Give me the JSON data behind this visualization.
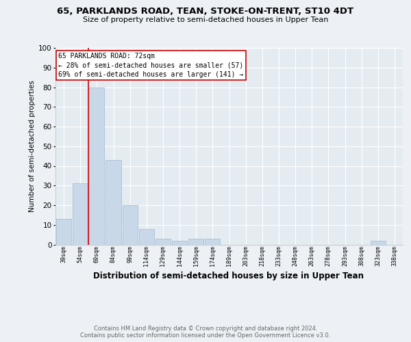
{
  "title_line1": "65, PARKLANDS ROAD, TEAN, STOKE-ON-TRENT, ST10 4DT",
  "title_line2": "Size of property relative to semi-detached houses in Upper Tean",
  "xlabel": "Distribution of semi-detached houses by size in Upper Tean",
  "ylabel": "Number of semi-detached properties",
  "footer_line1": "Contains HM Land Registry data © Crown copyright and database right 2024.",
  "footer_line2": "Contains public sector information licensed under the Open Government Licence v3.0.",
  "bins": [
    "39sqm",
    "54sqm",
    "69sqm",
    "84sqm",
    "99sqm",
    "114sqm",
    "129sqm",
    "144sqm",
    "159sqm",
    "174sqm",
    "189sqm",
    "203sqm",
    "218sqm",
    "233sqm",
    "248sqm",
    "263sqm",
    "278sqm",
    "293sqm",
    "308sqm",
    "323sqm",
    "338sqm"
  ],
  "values": [
    13,
    31,
    80,
    43,
    20,
    8,
    3,
    2,
    3,
    3,
    0,
    0,
    0,
    0,
    0,
    0,
    0,
    0,
    0,
    2,
    0
  ],
  "bar_color": "#c8d8e8",
  "bar_edge_color": "#a8c0d4",
  "annotation_line1": "65 PARKLANDS ROAD: 72sqm",
  "annotation_line2": "← 28% of semi-detached houses are smaller (57)",
  "annotation_line3": "69% of semi-detached houses are larger (141) →",
  "annotation_box_facecolor": "#ffffff",
  "annotation_box_edgecolor": "#cc0000",
  "ylim": [
    0,
    100
  ],
  "yticks": [
    0,
    10,
    20,
    30,
    40,
    50,
    60,
    70,
    80,
    90,
    100
  ],
  "background_color": "#edf1f5",
  "plot_bg_color": "#e4ecf2",
  "grid_color": "#ffffff",
  "vline_color": "#cc0000",
  "vline_x_bin_idx": 2,
  "title1_fontsize": 9.5,
  "title2_fontsize": 8.0,
  "ylabel_fontsize": 7.5,
  "xlabel_fontsize": 8.5,
  "ytick_fontsize": 7.5,
  "xtick_fontsize": 6.0,
  "annot_fontsize": 7.0,
  "footer_fontsize": 6.0
}
